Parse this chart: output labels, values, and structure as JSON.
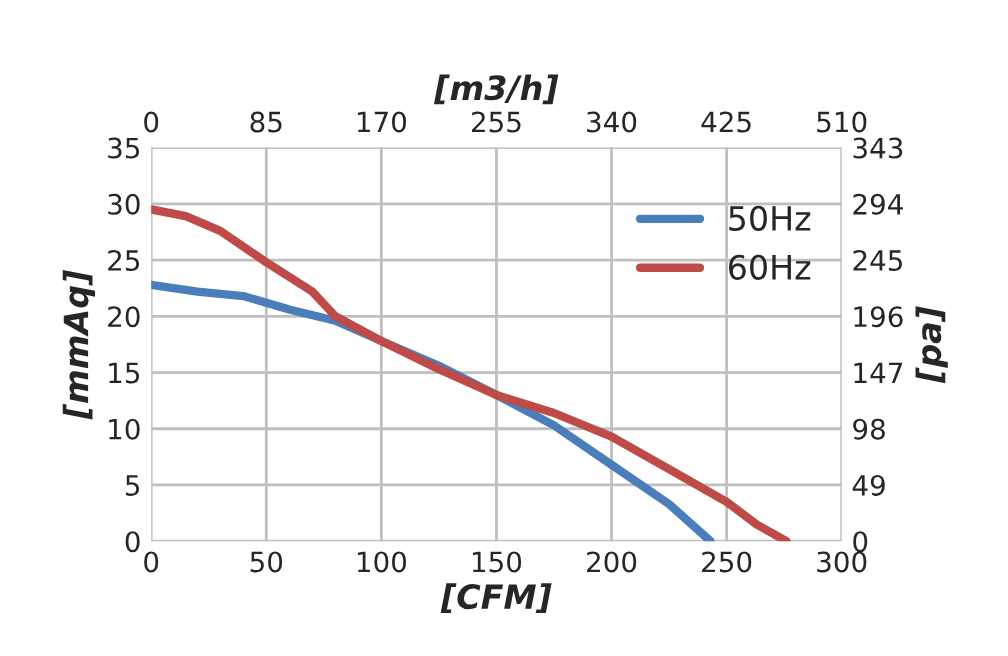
{
  "chart_data": {
    "type": "line",
    "xlabel": "[CFM]",
    "ylabel": "[mmAq]",
    "x2label": "[m3/h]",
    "y2label": "[pa]",
    "xlim": [
      0,
      300
    ],
    "xticks": [
      0,
      50,
      100,
      150,
      200,
      250,
      300
    ],
    "ylim": [
      0,
      35
    ],
    "yticks": [
      0,
      5,
      10,
      15,
      20,
      25,
      30,
      35
    ],
    "x2lim": [
      0,
      510
    ],
    "x2ticks": [
      0,
      85,
      170,
      255,
      340,
      425,
      510
    ],
    "y2lim": [
      0,
      343
    ],
    "y2ticks": [
      0,
      49,
      98,
      147,
      196,
      245,
      294,
      343
    ],
    "grid": true,
    "legend": "top right",
    "marker": "none",
    "line_style": "solid",
    "series": [
      {
        "name": "50Hz",
        "color": "#4a7ebb",
        "x": [
          0,
          20,
          40,
          50,
          60,
          80,
          100,
          125,
          150,
          175,
          200,
          225,
          243
        ],
        "values": [
          22.8,
          22.2,
          21.8,
          21.2,
          20.6,
          19.6,
          17.8,
          15.6,
          13.0,
          10.3,
          6.8,
          3.3,
          0
        ]
      },
      {
        "name": "60Hz",
        "color": "#be4b48",
        "x": [
          0,
          15,
          30,
          50,
          70,
          80,
          100,
          125,
          150,
          175,
          200,
          225,
          250,
          263,
          276
        ],
        "values": [
          29.5,
          28.9,
          27.6,
          24.8,
          22.2,
          20.0,
          17.8,
          15.3,
          13.0,
          11.4,
          9.3,
          6.4,
          3.5,
          1.5,
          0
        ]
      }
    ]
  }
}
